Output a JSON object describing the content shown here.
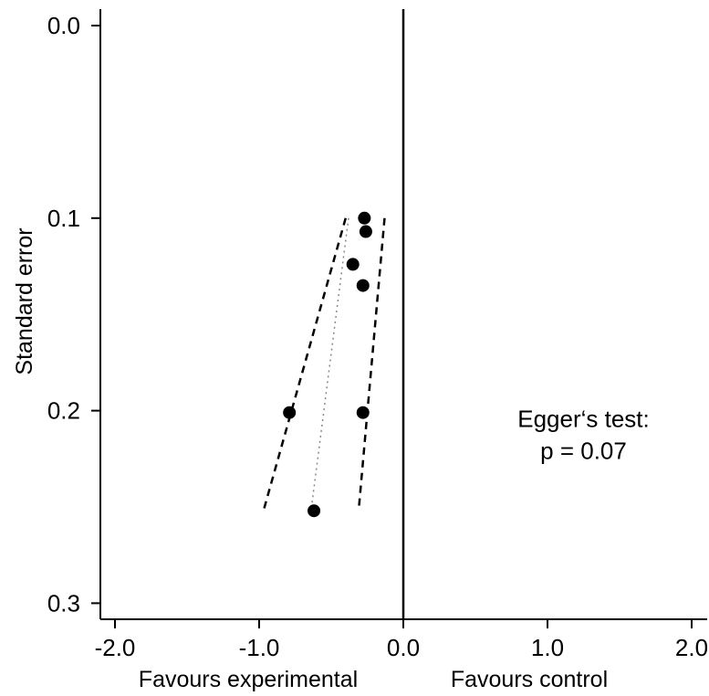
{
  "chart_data": {
    "type": "scatter",
    "title": "",
    "xlabel_left": "Favours experimental",
    "xlabel_right": "Favours control",
    "ylabel": "Standard error",
    "xlim": [
      -2.1,
      2.1
    ],
    "ylim": [
      0.0,
      0.3
    ],
    "y_reversed": true,
    "x_ticks": [
      -2.0,
      -1.0,
      0.0,
      1.0,
      2.0
    ],
    "x_tick_labels": [
      "-2.0",
      "-1.0",
      "0.0",
      "1.0",
      "2.0"
    ],
    "y_ticks": [
      0.0,
      0.1,
      0.2,
      0.3
    ],
    "y_tick_labels": [
      "0.0",
      "0.1",
      "0.2",
      "0.3"
    ],
    "reference_line_x": 0.0,
    "points": [
      {
        "x": -0.27,
        "y": 0.1
      },
      {
        "x": -0.26,
        "y": 0.107
      },
      {
        "x": -0.35,
        "y": 0.124
      },
      {
        "x": -0.28,
        "y": 0.135
      },
      {
        "x": -0.79,
        "y": 0.201
      },
      {
        "x": -0.28,
        "y": 0.201
      },
      {
        "x": -0.62,
        "y": 0.252
      }
    ],
    "regression_line": {
      "style": "dotted",
      "from": {
        "x": -0.38,
        "y": 0.1
      },
      "to": {
        "x": -0.64,
        "y": 0.252
      }
    },
    "confidence_band_left": {
      "style": "dashed",
      "from": {
        "x": -0.4,
        "y": 0.1
      },
      "to": {
        "x": -0.97,
        "y": 0.252
      }
    },
    "confidence_band_right": {
      "style": "dashed",
      "from": {
        "x": -0.13,
        "y": 0.1
      },
      "to": {
        "x": -0.31,
        "y": 0.252
      }
    },
    "annotation": {
      "line1": "Egger‘s test:",
      "line2": "p = 0.07",
      "x": 1.25,
      "y": 0.21
    },
    "grid": false,
    "legend": "none",
    "colors": {
      "points": "#000000",
      "axes": "#000000",
      "lines": "#000000"
    }
  }
}
